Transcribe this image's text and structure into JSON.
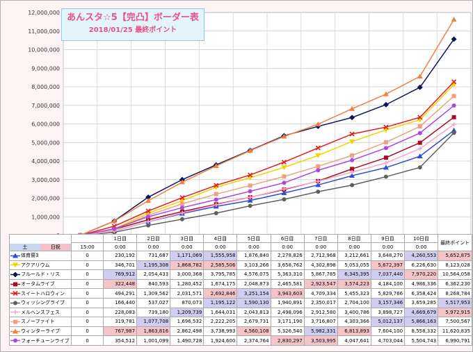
{
  "title": "あんスタ☆5【完凸】ボーダー表",
  "subtitle": "2018/01/25 最終ポイント",
  "corner": {
    "top_left": "土",
    "top_right": "日祝"
  },
  "chart_data": {
    "type": "line",
    "x_top": [
      "",
      "1日目",
      "2日目",
      "3日目",
      "4日目",
      "5日目",
      "6日目",
      "7日目",
      "8日目",
      "9日目",
      "10日目",
      "最終ポイント"
    ],
    "x_bottom": [
      "15:00",
      "0:00",
      "0:00",
      "0:00",
      "0:00",
      "0:00",
      "0:00",
      "0:00",
      "0:00",
      "0:00",
      "0:00",
      ""
    ],
    "y_ticks": [
      "0",
      "1,000,000",
      "2,000,000",
      "3,000,000",
      "4,000,000",
      "5,000,000",
      "6,000,000",
      "7,000,000",
      "8,000,000",
      "9,000,000",
      "10,000,000",
      "11,000,000",
      "12,000,000"
    ],
    "ylim": [
      0,
      12000000
    ],
    "grid": true,
    "series": [
      {
        "name": "体育祭3",
        "color": "#2a4fcf",
        "marker": "triangle",
        "values": [
          0,
          230192,
          731687,
          1171069,
          1555958,
          1876840,
          2278826,
          2712968,
          3212661,
          3648270,
          4260553,
          5652875
        ],
        "labels": [
          "0",
          "230,192",
          "731,687",
          "1,171,069",
          "1,555,958",
          "1,876,840",
          "2,278,826",
          "2,712,968",
          "3,212,661",
          "3,648,270",
          "4,260,553",
          "5,652,875"
        ]
      },
      {
        "name": "アクアリウム",
        "color": "#f2d300",
        "marker": "triangle-down",
        "values": [
          0,
          346701,
          1195308,
          1868782,
          2585506,
          3103266,
          3658762,
          4302898,
          5053055,
          5672397,
          6226630,
          8123028
        ],
        "labels": [
          "0",
          "346,701",
          "1,195,308",
          "1,868,782",
          "2,585,506",
          "3,103,266",
          "3,658,762",
          "4,302,898",
          "5,053,055",
          "5,672,397",
          "6,226,630",
          "8,123,028"
        ]
      },
      {
        "name": "フルールド・リス",
        "color": "#0c1462",
        "marker": "diamond",
        "values": [
          0,
          769912,
          2054433,
          3000368,
          3795785,
          4576075,
          5363310,
          5867785,
          6345395,
          7037440,
          7970220,
          10564058
        ],
        "labels": [
          "0",
          "769,912",
          "2,054,433",
          "3,000,368",
          "3,795,785",
          "4,576,075",
          "5,363,310",
          "5,867,785",
          "6,345,395",
          "7,037,440",
          "7,970,220",
          "10,564,058"
        ]
      },
      {
        "name": "オータムライブ",
        "color": "#a80c20",
        "marker": "square",
        "values": [
          0,
          322448,
          840593,
          1280452,
          1674175,
          2048873,
          2465581,
          2923547,
          3574223,
          4184100,
          4986336,
          6362230
        ],
        "labels": [
          "0",
          "322,448",
          "840,593",
          "1,280,452",
          "1,674,175",
          "2,048,873",
          "2,465,581",
          "2,923,547",
          "3,574,223",
          "4,184,100",
          "4,986,336",
          "6,362,230"
        ]
      },
      {
        "name": "スイートハロウィン",
        "color": "#e41c1c",
        "marker": "x",
        "values": [
          0,
          494291,
          1309562,
          2031571,
          2692846,
          3251154,
          3943603,
          4709334,
          5455323,
          5829766,
          6358424,
          8268784
        ],
        "labels": [
          "0",
          "494,291",
          "1,309,562",
          "2,031,571",
          "2,692,846",
          "3,251,154",
          "3,943,603",
          "4,709,334",
          "5,455,323",
          "5,829,766",
          "6,358,424",
          "8,268,784"
        ]
      },
      {
        "name": "ウィッシングライブ",
        "color": "#606060",
        "marker": "circle",
        "values": [
          0,
          166440,
          537027,
          870073,
          1195122,
          1590130,
          1940891,
          2350017,
          2704100,
          3157346,
          3659285,
          5517953
        ],
        "labels": [
          "0",
          "166,440",
          "537,027",
          "870,073",
          "1,195,122",
          "1,590,130",
          "1,940,891",
          "2,350,017",
          "2,704,100",
          "3,157,346",
          "3,659,285",
          "5,517,953"
        ]
      },
      {
        "name": "メルヘンスフェス",
        "color": "#f2a6d0",
        "marker": "plus",
        "values": [
          0,
          228083,
          739180,
          1209739,
          1644031,
          2043813,
          2498096,
          2912580,
          3400786,
          3898727,
          4669679,
          5972915
        ],
        "labels": [
          "0",
          "228,083",
          "739,180",
          "1,209,739",
          "1,644,031",
          "2,043,813",
          "2,498,096",
          "2,912,580",
          "3,400,786",
          "3,898,727",
          "4,669,679",
          "5,972,915"
        ]
      },
      {
        "name": "スノーファイト",
        "color": "#f0a080",
        "marker": "square",
        "values": [
          0,
          319781,
          1077708,
          1696532,
          2222205,
          2679731,
          3171190,
          3716807,
          4303366,
          5012137,
          5866163,
          7500567
        ],
        "labels": [
          "0",
          "319,781",
          "1,077,708",
          "1,696,532",
          "2,222,205",
          "2,679,731",
          "3,171,190",
          "3,716,807",
          "4,303,366",
          "5,012,137",
          "5,866,163",
          "7,500,567"
        ]
      },
      {
        "name": "ウィンターライブ",
        "color": "#f08040",
        "marker": "triangle",
        "values": [
          0,
          767987,
          1863816,
          2862498,
          3738993,
          4560108,
          5326540,
          5982331,
          6813893,
          7604100,
          8558332,
          11620835
        ],
        "labels": [
          "0",
          "767,987",
          "1,863,816",
          "2,862,498",
          "3,738,993",
          "4,560,108",
          "5,326,540",
          "5,982,331",
          "6,813,893",
          "7,604,100",
          "8,558,332",
          "11,620,835"
        ]
      },
      {
        "name": "フォーチューンライブ",
        "color": "#a84ae0",
        "marker": "circle",
        "values": [
          0,
          354512,
          1001099,
          1490728,
          1924600,
          2374764,
          2830297,
          3503995,
          4047641,
          4703044,
          5504743,
          6990791
        ],
        "labels": [
          "0",
          "354,512",
          "1,001,099",
          "1,490,728",
          "1,924,600",
          "2,374,764",
          "2,830,297",
          "3,503,995",
          "4,047,641",
          "4,703,044",
          "5,504,743",
          "6,990,791"
        ]
      }
    ],
    "highlights": {
      "red": [
        [
          0,
          11
        ],
        [
          1,
          3
        ],
        [
          1,
          4
        ],
        [
          1,
          9
        ],
        [
          2,
          10
        ],
        [
          3,
          1
        ],
        [
          3,
          7
        ],
        [
          3,
          8
        ],
        [
          4,
          4
        ],
        [
          4,
          6
        ],
        [
          6,
          11
        ],
        [
          8,
          1
        ],
        [
          8,
          2
        ],
        [
          8,
          5
        ],
        [
          8,
          8
        ],
        [
          9,
          6
        ],
        [
          9,
          7
        ]
      ],
      "blue": [
        [
          0,
          3
        ],
        [
          0,
          4
        ],
        [
          0,
          10
        ],
        [
          1,
          2
        ],
        [
          2,
          1
        ],
        [
          2,
          8
        ],
        [
          2,
          9
        ],
        [
          4,
          5
        ],
        [
          5,
          4
        ],
        [
          5,
          5
        ],
        [
          5,
          9
        ],
        [
          5,
          11
        ],
        [
          6,
          3
        ],
        [
          6,
          10
        ],
        [
          7,
          2
        ],
        [
          7,
          9
        ],
        [
          7,
          10
        ],
        [
          8,
          7
        ]
      ]
    }
  }
}
